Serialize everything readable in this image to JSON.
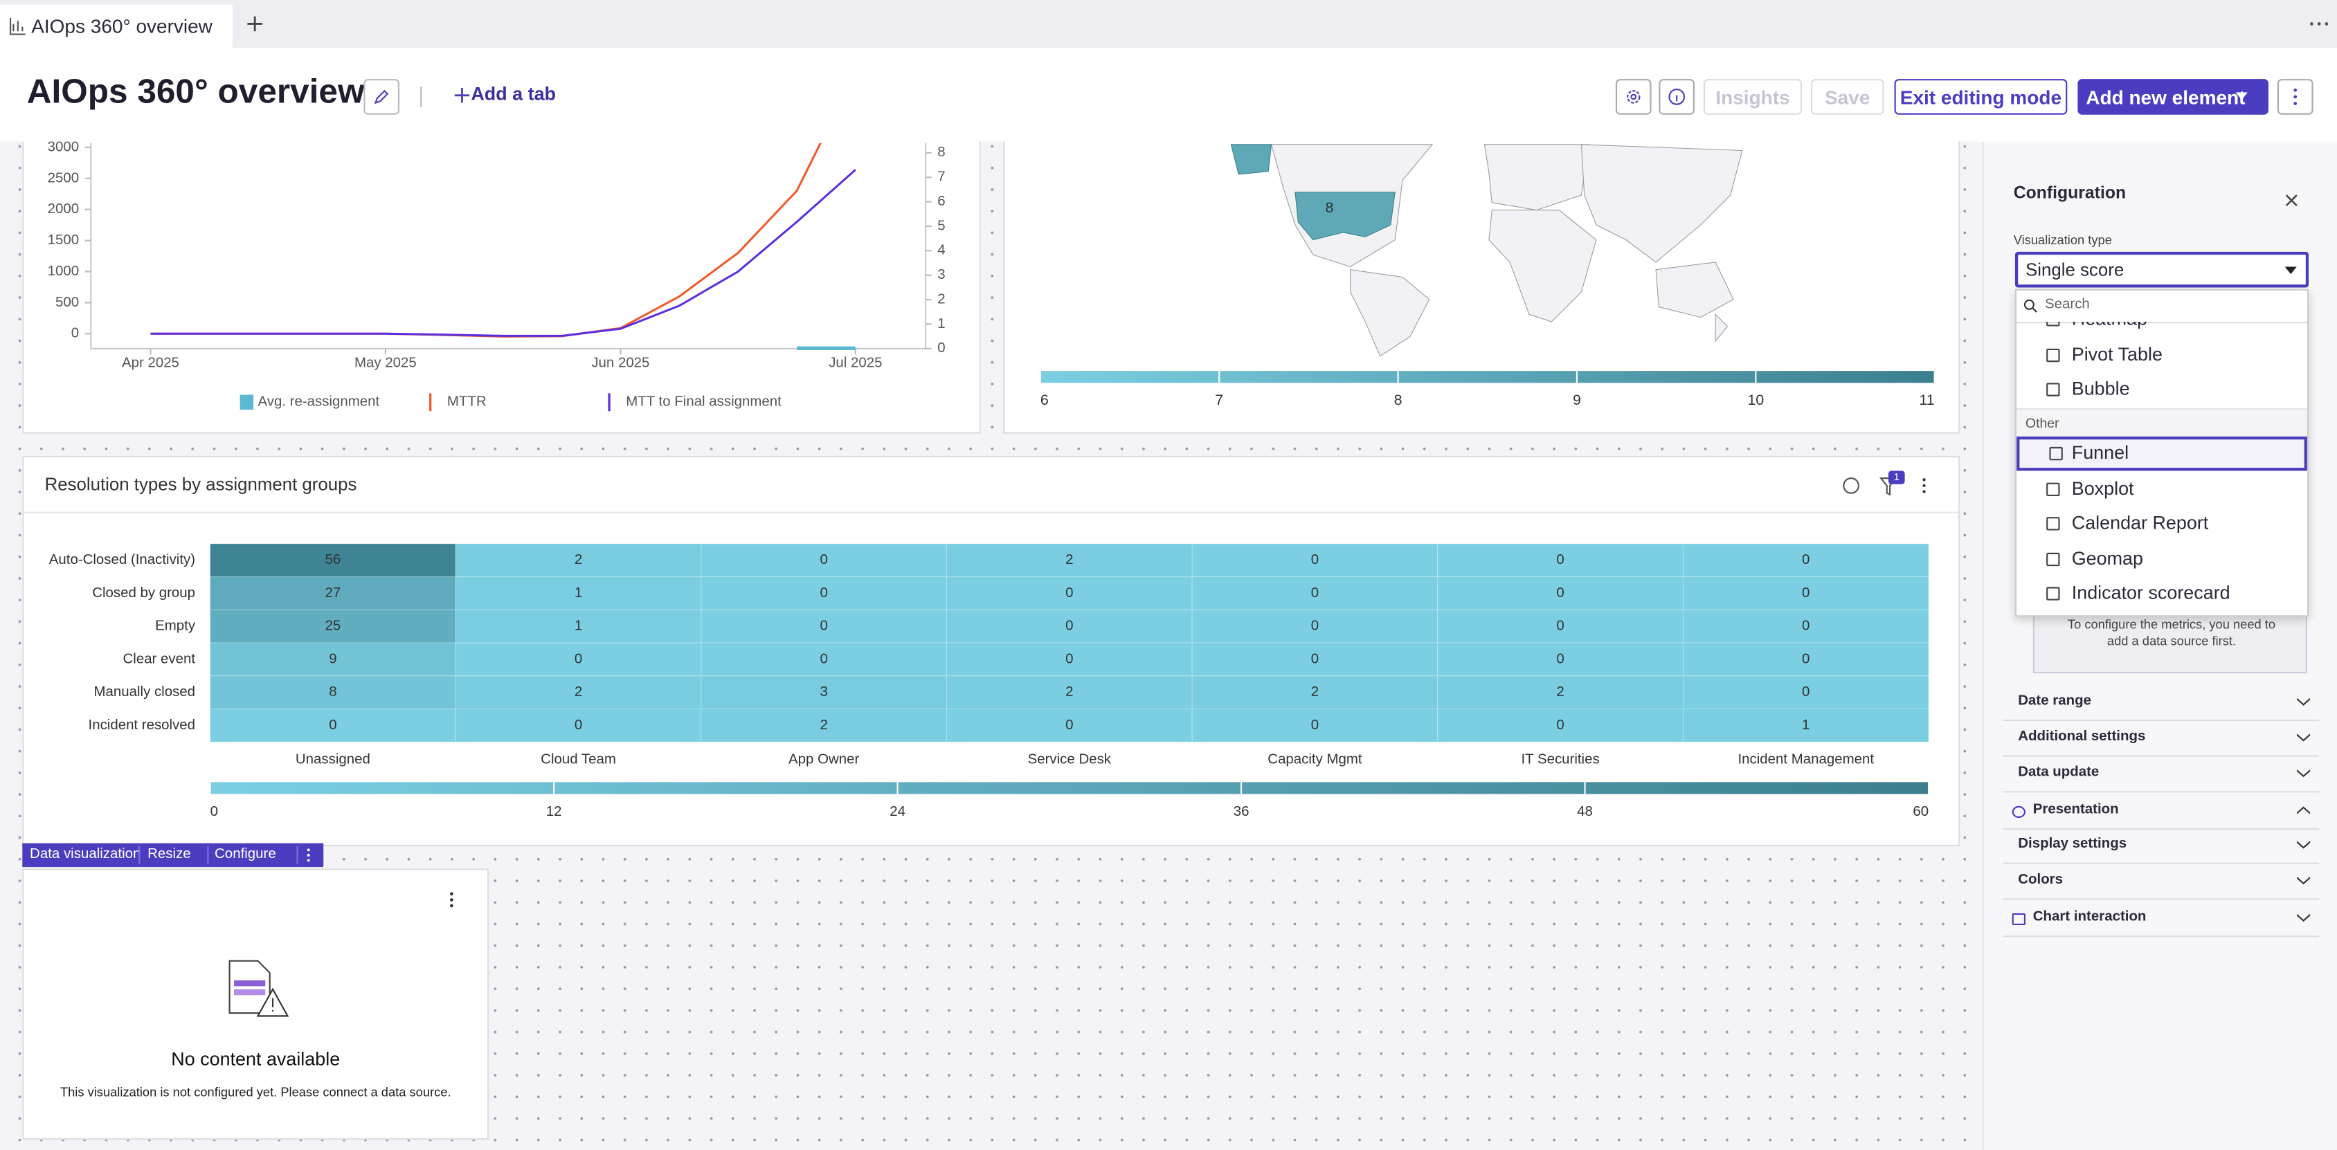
{
  "tab": {
    "title": "AIOps 360° overview"
  },
  "header": {
    "title": "AIOps 360° overview",
    "add_tab": "Add a tab",
    "insights": "Insights",
    "save": "Save",
    "exit": "Exit editing mode",
    "add_element": "Add new element"
  },
  "line_chart": {
    "type": "line",
    "categories": [
      "Apr 2025",
      null,
      null,
      null,
      "May 2025",
      null,
      null,
      null,
      "Jun 2025",
      null,
      null,
      null,
      "Jul 2025"
    ],
    "series": [
      {
        "name": "Avg. re-assignment",
        "color": "#5bb9d4",
        "axis": "y2",
        "values": [
          null,
          null,
          null,
          null,
          null,
          null,
          null,
          null,
          null,
          null,
          null,
          0,
          0
        ]
      },
      {
        "name": "MTTR",
        "color": "#f05a28",
        "values": [
          0,
          0,
          0,
          0,
          0,
          -20,
          -45,
          -40,
          90,
          600,
          1300,
          2300,
          4200
        ]
      },
      {
        "name": "MTT to Final assignment",
        "color": "#5b2ee0",
        "values": [
          0,
          0,
          0,
          0,
          0,
          -15,
          -35,
          -35,
          80,
          450,
          1000,
          1800,
          2640
        ]
      }
    ],
    "ylim": [
      -240,
      3070
    ],
    "yticks": [
      0,
      500,
      1000,
      1500,
      2000,
      2500,
      3000
    ],
    "y2lim": [
      0,
      8.4
    ],
    "y2ticks": [
      0,
      1,
      2,
      3,
      4,
      5,
      6,
      7,
      8
    ]
  },
  "map": {
    "type": "map",
    "value": 8,
    "legend_range": [
      6,
      11
    ],
    "legend_ticks": [
      6,
      7,
      8,
      9,
      10,
      11
    ]
  },
  "heatmap": {
    "type": "heatmap",
    "title": "Resolution types by assignment groups",
    "filter_count": 1,
    "rows": [
      "Auto-Closed (Inactivity)",
      "Closed by group",
      "Empty",
      "Clear event",
      "Manually closed",
      "Incident resolved"
    ],
    "columns": [
      "Unassigned",
      "Cloud Team",
      "App Owner",
      "Service Desk",
      "Capacity Mgmt",
      "IT Securities",
      "Incident Management"
    ],
    "values": [
      [
        56,
        2,
        0,
        2,
        0,
        0,
        0
      ],
      [
        27,
        1,
        0,
        0,
        0,
        0,
        0
      ],
      [
        25,
        1,
        0,
        0,
        0,
        0,
        0
      ],
      [
        9,
        0,
        0,
        0,
        0,
        0,
        0
      ],
      [
        8,
        2,
        3,
        2,
        2,
        2,
        0
      ],
      [
        0,
        0,
        2,
        0,
        0,
        0,
        1
      ]
    ],
    "scale_range": [
      0,
      60
    ],
    "scale_ticks": [
      0,
      12,
      24,
      36,
      48,
      60
    ]
  },
  "toolbar": {
    "label": "Data visualization",
    "resize": "Resize",
    "configure": "Configure"
  },
  "empty_widget": {
    "title": "No content available",
    "message": "This visualization is not configured yet. Please connect a data source."
  },
  "config": {
    "title": "Configuration",
    "type_label": "Visualization type",
    "selected": "Single score",
    "search": "Search",
    "options_top": [
      "Heatmap",
      "Pivot Table",
      "Bubble"
    ],
    "group": "Other",
    "options": [
      "Funnel",
      "Boxplot",
      "Calendar Report",
      "Geomap",
      "Indicator scorecard"
    ],
    "note": "To configure the metrics, you need to add a data source first.",
    "sections": [
      "Date range",
      "Additional settings",
      "Data update",
      "Presentation",
      "Display settings",
      "Colors",
      "Chart interaction"
    ]
  }
}
